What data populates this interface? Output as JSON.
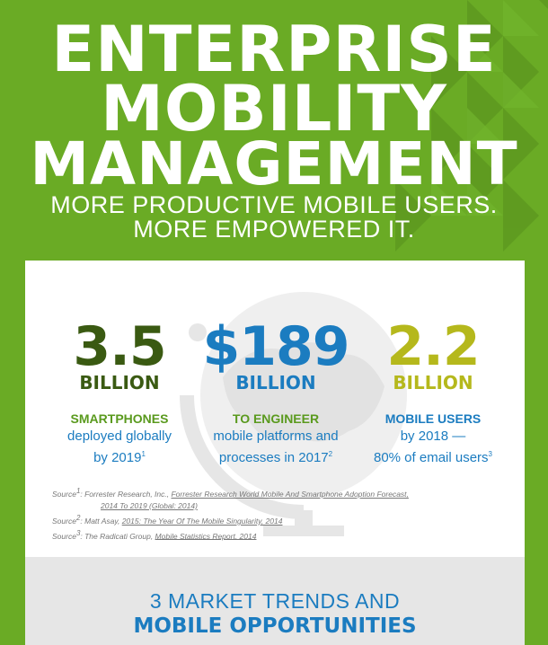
{
  "header": {
    "title_line1": "ENTERPRISE",
    "title_line2": "MOBILITY",
    "title_line3": "MANAGEMENT",
    "subtitle_line1": "MORE PRODUCTIVE MOBILE USERS.",
    "subtitle_line2": "MORE EMPOWERED IT."
  },
  "stats": [
    {
      "number": "3.5",
      "unit": "BILLION",
      "label": "SMARTPHONES",
      "desc1": "deployed globally",
      "desc2": "by 2019",
      "sup": "1",
      "color": "#3a5a12"
    },
    {
      "number": "$189",
      "unit": "BILLION",
      "label": "TO ENGINEER",
      "desc1": "mobile platforms and",
      "desc2": "processes in 2017",
      "sup": "2",
      "color": "#1b7cc0"
    },
    {
      "number": "2.2",
      "unit": "BILLION",
      "label": "MOBILE USERS",
      "desc1": "by 2018 —",
      "desc2": "80% of email users",
      "sup": "3",
      "color": "#b5b81c"
    }
  ],
  "sources": {
    "s1_prefix": "Source",
    "s1_sup": "1",
    "s1_text": ": Forrester Research, Inc., ",
    "s1_link": "Forrester Research World Mobile And Smartphone Adoption Forecast,",
    "s1_link2": "2014 To 2019 (Global: 2014)",
    "s2_prefix": "Source",
    "s2_sup": "2",
    "s2_text": ": Matt Asay, ",
    "s2_link": "2015: The Year Of The Mobile Singularity, 2014",
    "s3_prefix": "Source",
    "s3_sup": "3",
    "s3_text": ": The Radicati Group, ",
    "s3_link": "Mobile Statistics Report, 2014"
  },
  "trends": {
    "line1": "3 MARKET TRENDS AND",
    "line2": "MOBILE OPPORTUNITIES"
  },
  "colors": {
    "green": "#6aab25",
    "dark_green": "#3a5a12",
    "blue": "#1b7cc0",
    "olive": "#b5b81c"
  }
}
